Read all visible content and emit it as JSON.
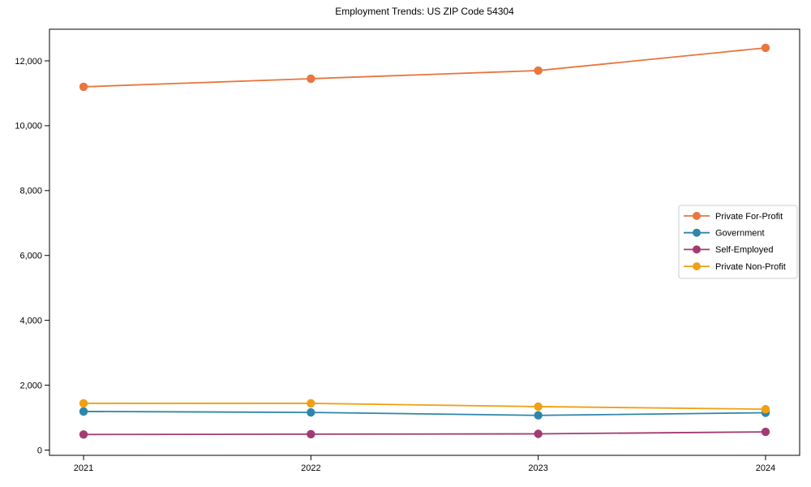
{
  "figure": {
    "background": "#ffffff",
    "axis_color": "#000000"
  },
  "chart_data": {
    "type": "line",
    "title": "Employment Trends: US ZIP Code 54304",
    "xlabel": "",
    "ylabel": "",
    "categories": [
      "2021",
      "2022",
      "2023",
      "2024"
    ],
    "series": [
      {
        "name": "Private For-Profit",
        "color": "#E8763E",
        "values": [
          11200,
          11450,
          11700,
          12400
        ]
      },
      {
        "name": "Government",
        "color": "#2E86AB",
        "values": [
          1190,
          1160,
          1070,
          1150
        ]
      },
      {
        "name": "Self-Employed",
        "color": "#A23B72",
        "values": [
          480,
          490,
          500,
          560
        ]
      },
      {
        "name": "Private Non-Profit",
        "color": "#F0A014",
        "values": [
          1440,
          1440,
          1340,
          1260
        ]
      }
    ],
    "xlim": [
      -0.15,
      3.15
    ],
    "ylim": [
      -163,
      12975
    ],
    "yticks": [
      0,
      2000,
      4000,
      6000,
      8000,
      10000,
      12000
    ],
    "ytick_labels": [
      "0",
      "2,000",
      "4,000",
      "6,000",
      "8,000",
      "10,000",
      "12,000"
    ],
    "grid": false,
    "marker": "circle",
    "legend": {
      "position": "center-right",
      "border_color": "#cccccc",
      "background": "#ffffff",
      "entries": [
        "Private For-Profit",
        "Government",
        "Self-Employed",
        "Private Non-Profit"
      ]
    }
  }
}
